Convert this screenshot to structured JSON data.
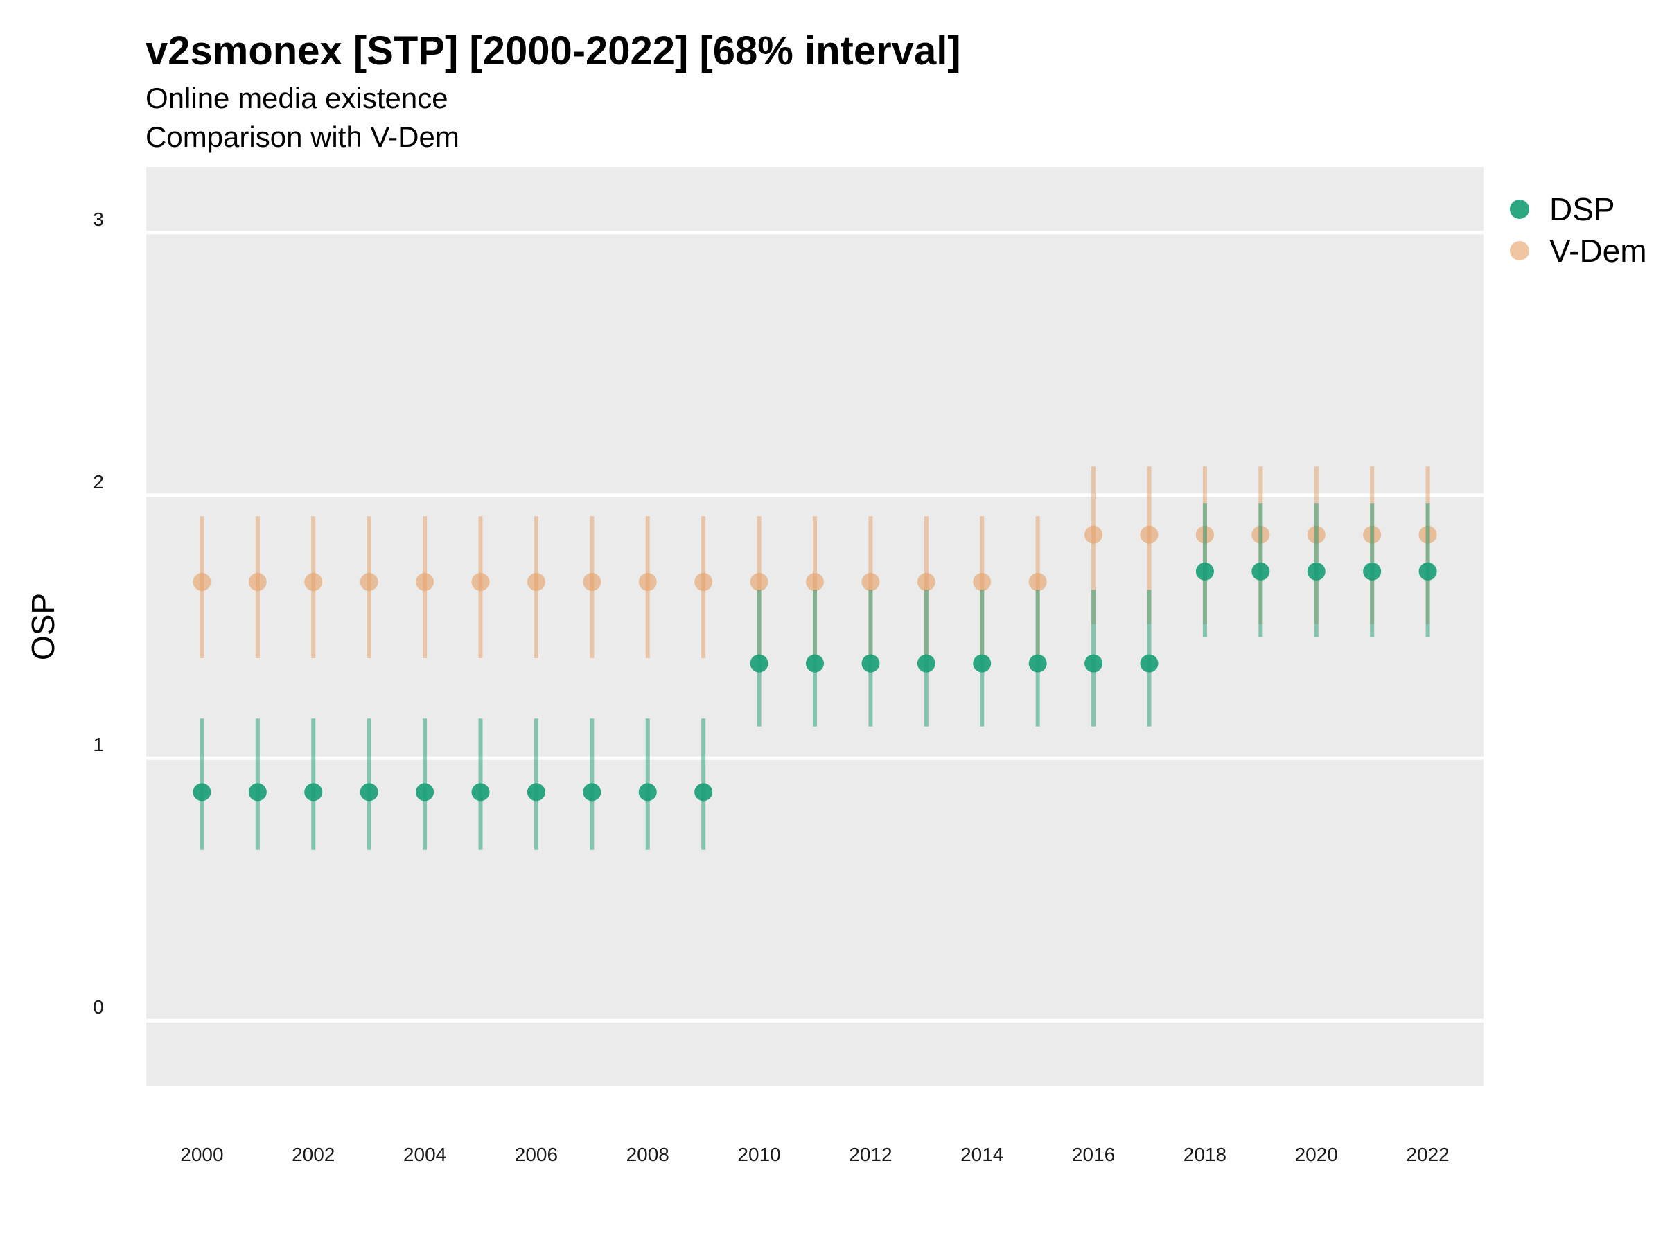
{
  "header": {
    "title": "v2smonex [STP] [2000-2022] [68% interval]",
    "subtitle1": "Online media existence",
    "subtitle2": "Comparison with V-Dem"
  },
  "colors": {
    "panel": "#ebebeb",
    "grid": "#ffffff",
    "DSP": "#1b9e77",
    "V-Dem": "#e69f64"
  },
  "chart_data": {
    "type": "scatter",
    "ylabel": "OSP",
    "xlabel": "",
    "ylim": [
      -0.25,
      3.25
    ],
    "yticks": [
      0,
      1,
      2,
      3
    ],
    "xlim": [
      1999,
      2023
    ],
    "xticks": [
      2000,
      2002,
      2004,
      2006,
      2008,
      2010,
      2012,
      2014,
      2016,
      2018,
      2020,
      2022
    ],
    "grid": true,
    "legend_position": "right",
    "x": [
      2000,
      2001,
      2002,
      2003,
      2004,
      2005,
      2006,
      2007,
      2008,
      2009,
      2010,
      2011,
      2012,
      2013,
      2014,
      2015,
      2016,
      2017,
      2018,
      2019,
      2020,
      2021,
      2022
    ],
    "series": [
      {
        "name": "DSP",
        "values": [
          0.87,
          0.87,
          0.87,
          0.87,
          0.87,
          0.87,
          0.87,
          0.87,
          0.87,
          0.87,
          1.36,
          1.36,
          1.36,
          1.36,
          1.36,
          1.36,
          1.36,
          1.36,
          1.71,
          1.71,
          1.71,
          1.71,
          1.71
        ],
        "lower": [
          0.65,
          0.65,
          0.65,
          0.65,
          0.65,
          0.65,
          0.65,
          0.65,
          0.65,
          0.65,
          1.12,
          1.12,
          1.12,
          1.12,
          1.12,
          1.12,
          1.12,
          1.12,
          1.46,
          1.46,
          1.46,
          1.46,
          1.46
        ],
        "upper": [
          1.15,
          1.15,
          1.15,
          1.15,
          1.15,
          1.15,
          1.15,
          1.15,
          1.15,
          1.15,
          1.64,
          1.64,
          1.64,
          1.64,
          1.64,
          1.64,
          1.64,
          1.64,
          1.97,
          1.97,
          1.97,
          1.97,
          1.97
        ]
      },
      {
        "name": "V-Dem",
        "values": [
          1.67,
          1.67,
          1.67,
          1.67,
          1.67,
          1.67,
          1.67,
          1.67,
          1.67,
          1.67,
          1.67,
          1.67,
          1.67,
          1.67,
          1.67,
          1.67,
          1.85,
          1.85,
          1.85,
          1.85,
          1.85,
          1.85,
          1.85
        ],
        "lower": [
          1.38,
          1.38,
          1.38,
          1.38,
          1.38,
          1.38,
          1.38,
          1.38,
          1.38,
          1.38,
          1.38,
          1.38,
          1.38,
          1.38,
          1.38,
          1.38,
          1.51,
          1.51,
          1.51,
          1.51,
          1.51,
          1.51,
          1.51
        ],
        "upper": [
          1.92,
          1.92,
          1.92,
          1.92,
          1.92,
          1.92,
          1.92,
          1.92,
          1.92,
          1.92,
          1.92,
          1.92,
          1.92,
          1.92,
          1.92,
          1.92,
          2.11,
          2.11,
          2.11,
          2.11,
          2.11,
          2.11,
          2.11
        ]
      }
    ]
  }
}
